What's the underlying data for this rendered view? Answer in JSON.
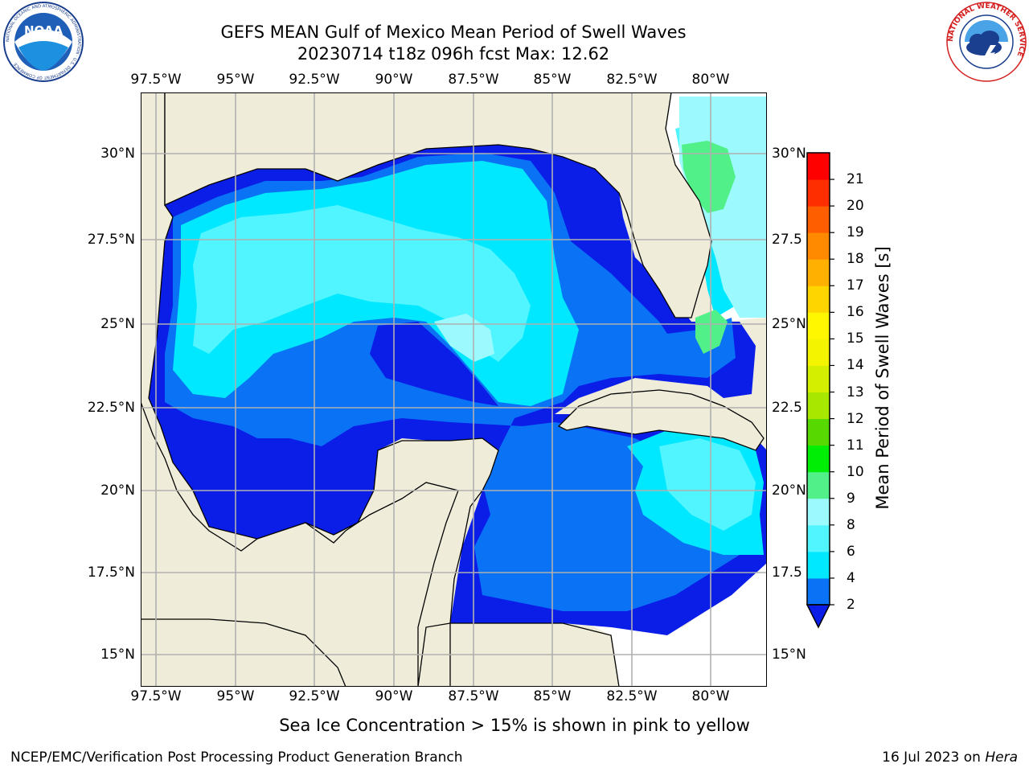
{
  "title": {
    "line1": "GEFS MEAN Gulf of Mexico Mean Period of Swell Waves",
    "line2": "20230714 t18z 096h fcst   Max: 12.62"
  },
  "logos": {
    "noaa": {
      "text": "NOAA",
      "ring_text": "NATIONAL OCEANIC AND ATMOSPHERIC ADMINISTRATION · U.S. DEPARTMENT OF COMMERCE"
    },
    "nws": {
      "ring_text": "NATIONAL WEATHER SERVICE"
    }
  },
  "map": {
    "lon_ticks": [
      "97.5°W",
      "95°W",
      "92.5°W",
      "90°W",
      "87.5°W",
      "85°W",
      "82.5°W",
      "80°W"
    ],
    "lat_ticks_left": [
      "30°N",
      "27.5°N",
      "25°N",
      "22.5°N",
      "20°N",
      "17.5°N",
      "15°N"
    ],
    "lat_ticks_right": [
      "30°N",
      "27.5",
      "25°N",
      "22.5",
      "20°N",
      "17.5",
      "15°N"
    ],
    "lon_range": [
      -98,
      -78.3
    ],
    "lat_range": [
      14,
      32
    ],
    "grid": true,
    "land_color": "#efedd9",
    "nodata_color": "#ffffff"
  },
  "colorbar": {
    "label": "Mean Period of Swell Waves [s]",
    "ticks": [
      "2",
      "4",
      "6",
      "8",
      "9",
      "10",
      "11",
      "12",
      "13",
      "14",
      "15",
      "16",
      "17",
      "18",
      "19",
      "20",
      "21"
    ],
    "colors": [
      "#0a72f5",
      "#00e8ff",
      "#50f5ff",
      "#9cfaff",
      "#52f089",
      "#00ee06",
      "#56d800",
      "#a8e800",
      "#d4f000",
      "#f4f400",
      "#fff700",
      "#ffd500",
      "#ffb000",
      "#ff8a00",
      "#ff5e00",
      "#ff2e00",
      "#ff0000"
    ],
    "under_color": "#0a1ee8"
  },
  "caption": "Sea Ice Concentration > 15% is shown in pink to yellow",
  "footer": {
    "left": "NCEP/EMC/Verification Post Processing Product Generation Branch",
    "right_prefix": "16 Jul 2023 on ",
    "right_machine": "Hera"
  }
}
